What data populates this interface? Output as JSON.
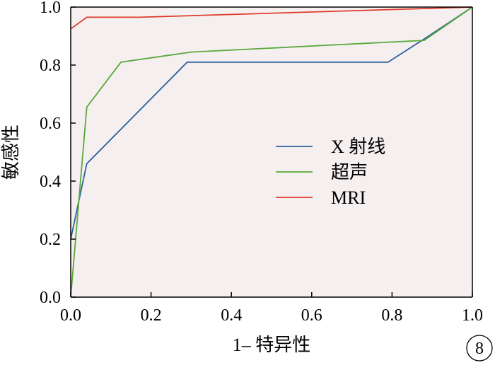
{
  "chart_data": {
    "type": "line",
    "xlabel": "1– 特异性",
    "ylabel": "敏感性",
    "xlim": [
      0,
      1
    ],
    "ylim": [
      0,
      1
    ],
    "x_ticks": [
      "0.0",
      "0.2",
      "0.4",
      "0.6",
      "0.8",
      "1.0"
    ],
    "y_ticks": [
      "0.0",
      "0.2",
      "0.4",
      "0.6",
      "0.8",
      "1.0"
    ],
    "grid": false,
    "legend_position": "center-right",
    "plot_background": "#f5f0ef",
    "series": [
      {
        "name": "X 射线",
        "color": "#2e5f9e",
        "x": [
          0,
          0.04,
          0.29,
          0.79,
          0.88,
          1.0
        ],
        "y": [
          0.2,
          0.46,
          0.81,
          0.81,
          0.89,
          1.0
        ]
      },
      {
        "name": "超声",
        "color": "#5aa83c",
        "x": [
          0,
          0.04,
          0.125,
          0.3,
          0.88,
          1.0
        ],
        "y": [
          0,
          0.655,
          0.81,
          0.845,
          0.885,
          1.0
        ]
      },
      {
        "name": "MRI",
        "color": "#e03a2a",
        "x": [
          0,
          0.04,
          0.17,
          1.0
        ],
        "y": [
          0.925,
          0.965,
          0.965,
          1.0
        ]
      }
    ],
    "panel_label": "8"
  }
}
